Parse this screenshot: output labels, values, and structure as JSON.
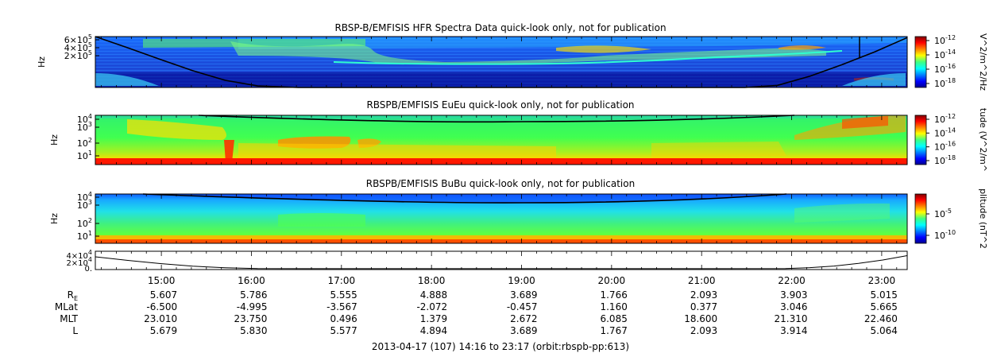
{
  "chart_data": {
    "type": "heatmap",
    "panels": [
      {
        "id": "hfr",
        "title": "RBSP-B/EMFISIS  HFR Spectra Data quick-look only, not for publication",
        "ylabel": "Hz",
        "yticks": [
          {
            "base": "6×10",
            "exp": "5"
          },
          {
            "base": "4×10",
            "exp": "5"
          },
          {
            "base": "2×10",
            "exp": "5"
          }
        ],
        "colorbar_label": "V^2/m^2/Hz",
        "colorbar_ticks": [
          {
            "base": "10",
            "exp": "-12"
          },
          {
            "base": "10",
            "exp": "-14"
          },
          {
            "base": "10",
            "exp": "-16"
          },
          {
            "base": "10",
            "exp": "-18"
          }
        ]
      },
      {
        "id": "eueu",
        "title": "RBSPB/EMFISIS  EuEu quick-look only, not for publication",
        "ylabel": "Hz",
        "yticks": [
          {
            "base": "10",
            "exp": "4"
          },
          {
            "base": "10",
            "exp": "3"
          },
          {
            "base": "10",
            "exp": "2"
          },
          {
            "base": "10",
            "exp": "1"
          }
        ],
        "colorbar_label": "tude (V^2/m^",
        "colorbar_ticks": [
          {
            "base": "10",
            "exp": "-12"
          },
          {
            "base": "10",
            "exp": "-14"
          },
          {
            "base": "10",
            "exp": "-16"
          },
          {
            "base": "10",
            "exp": "-18"
          }
        ]
      },
      {
        "id": "bubu",
        "title": "RBSPB/EMFISIS  BuBu quick-look only, not for publication",
        "ylabel": "Hz",
        "yticks": [
          {
            "base": "10",
            "exp": "4"
          },
          {
            "base": "10",
            "exp": "3"
          },
          {
            "base": "10",
            "exp": "2"
          },
          {
            "base": "10",
            "exp": "1"
          }
        ],
        "colorbar_label": "plitude (nT^2",
        "colorbar_ticks": [
          {
            "base": "10",
            "exp": "-5"
          },
          {
            "base": "10",
            "exp": "-10"
          }
        ]
      }
    ],
    "line_panel": {
      "yticks": [
        {
          "base": "4×10",
          "exp": "4"
        },
        {
          "base": "2×10",
          "exp": "4"
        },
        {
          "base": "0.",
          "exp": ""
        }
      ],
      "ylim": [
        0,
        40000
      ],
      "t": [
        0.0,
        0.04,
        0.08,
        0.12,
        0.16,
        0.2,
        0.3,
        0.5,
        0.7,
        0.85,
        0.88,
        0.91,
        0.94,
        0.97,
        1.0
      ],
      "values": [
        30000,
        21000,
        13000,
        6500,
        2600,
        400,
        150,
        100,
        150,
        350,
        2800,
        6800,
        13500,
        22000,
        33000
      ]
    },
    "fce_curve": {
      "t": [
        0.0,
        0.04,
        0.08,
        0.12,
        0.16,
        0.2,
        0.25,
        0.3,
        0.5,
        0.7,
        0.8,
        0.84,
        0.88,
        0.92,
        0.96,
        1.0
      ],
      "hfr_y": [
        0.0,
        0.22,
        0.45,
        0.67,
        0.86,
        0.97,
        1.0,
        1.0,
        1.0,
        1.0,
        1.0,
        0.96,
        0.78,
        0.55,
        0.3,
        0.02
      ]
    },
    "x_axis": {
      "time_range": [
        "14:16",
        "23:17"
      ],
      "ticks": [
        "15:00",
        "16:00",
        "17:00",
        "18:00",
        "19:00",
        "20:00",
        "21:00",
        "22:00",
        "23:00"
      ],
      "tick_positions_hours": [
        15,
        16,
        17,
        18,
        19,
        20,
        21,
        22,
        23
      ],
      "start_hour": 14.2667,
      "end_hour": 23.2833
    },
    "ephemeris": {
      "rows": [
        {
          "label": "R",
          "sub": "E",
          "values": [
            "5.607",
            "5.786",
            "5.555",
            "4.888",
            "3.689",
            "1.766",
            "2.093",
            "3.903",
            "5.015"
          ]
        },
        {
          "label": "MLat",
          "sub": "",
          "values": [
            "-6.500",
            "-4.995",
            "-3.567",
            "-2.072",
            "-0.457",
            "1.160",
            "0.377",
            "3.046",
            "5.665"
          ]
        },
        {
          "label": "MLT",
          "sub": "",
          "values": [
            "23.010",
            "23.750",
            "0.496",
            "1.379",
            "2.672",
            "6.085",
            "18.600",
            "21.310",
            "22.460"
          ]
        },
        {
          "label": "L",
          "sub": "",
          "values": [
            "5.679",
            "5.830",
            "5.577",
            "4.894",
            "3.689",
            "1.767",
            "2.093",
            "3.914",
            "5.064"
          ]
        }
      ]
    },
    "footer": "2013-04-17 (107) 14:16 to 23:17 (orbit:rbspb-pp:613)"
  }
}
